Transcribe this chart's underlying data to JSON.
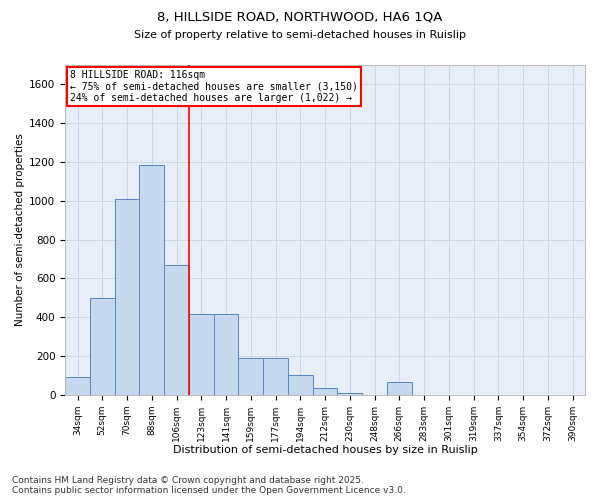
{
  "title1": "8, HILLSIDE ROAD, NORTHWOOD, HA6 1QA",
  "title2": "Size of property relative to semi-detached houses in Ruislip",
  "xlabel": "Distribution of semi-detached houses by size in Ruislip",
  "ylabel": "Number of semi-detached properties",
  "categories": [
    "34sqm",
    "52sqm",
    "70sqm",
    "88sqm",
    "106sqm",
    "123sqm",
    "141sqm",
    "159sqm",
    "177sqm",
    "194sqm",
    "212sqm",
    "230sqm",
    "248sqm",
    "266sqm",
    "283sqm",
    "301sqm",
    "319sqm",
    "337sqm",
    "354sqm",
    "372sqm",
    "390sqm"
  ],
  "values": [
    90,
    500,
    1010,
    1185,
    670,
    415,
    415,
    190,
    190,
    100,
    35,
    10,
    0,
    65,
    0,
    0,
    0,
    0,
    0,
    0,
    0
  ],
  "bar_color": "#c5d8ee",
  "bar_edge_color": "#5585c5",
  "vline_color": "red",
  "annotation_text": "8 HILLSIDE ROAD: 116sqm\n← 75% of semi-detached houses are smaller (3,150)\n24% of semi-detached houses are larger (1,022) →",
  "annotation_box_color": "white",
  "annotation_box_edge_color": "red",
  "ylim": [
    0,
    1700
  ],
  "yticks": [
    0,
    200,
    400,
    600,
    800,
    1000,
    1200,
    1400,
    1600
  ],
  "grid_color": "#c8d8e8",
  "background_color": "#e8eef8",
  "footer_text": "Contains HM Land Registry data © Crown copyright and database right 2025.\nContains public sector information licensed under the Open Government Licence v3.0.",
  "footer_fontsize": 6.5
}
